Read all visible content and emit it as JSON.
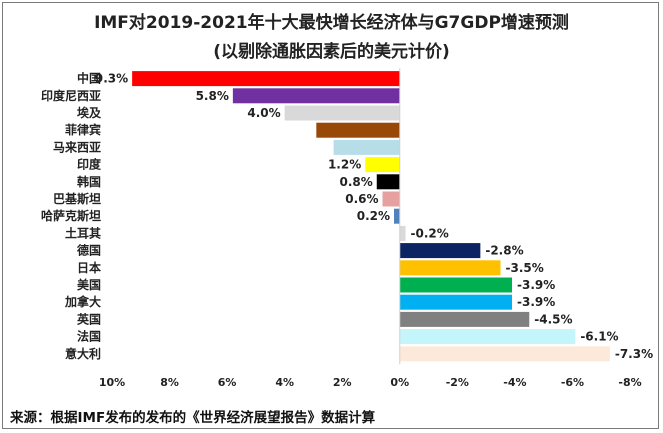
{
  "chart_data": {
    "type": "bar",
    "orientation": "horizontal",
    "title": "IMF对2019-2021年十大最快增长经济体与G7GDP增速预测",
    "subtitle": "(以剔除通胀因素后的美元计价)",
    "xlabel": "",
    "ylabel": "",
    "xlim": [
      -8,
      10
    ],
    "x_reversed": true,
    "x_ticks": [
      "10%",
      "8%",
      "6%",
      "4%",
      "2%",
      "0%",
      "-2%",
      "-4%",
      "-6%",
      "-8%"
    ],
    "x_tick_values": [
      10,
      8,
      6,
      4,
      2,
      0,
      -2,
      -4,
      -6,
      -8
    ],
    "grid": false,
    "legend": false,
    "categories": [
      "中国",
      "印度尼西亚",
      "埃及",
      "菲律宾",
      "马来西亚",
      "印度",
      "韩国",
      "巴基斯坦",
      "哈萨克斯坦",
      "土耳其",
      "德国",
      "日本",
      "美国",
      "加拿大",
      "英国",
      "法国",
      "意大利"
    ],
    "values": [
      9.3,
      5.8,
      4.0,
      2.9,
      2.3,
      1.2,
      0.8,
      0.6,
      0.2,
      -0.2,
      -2.8,
      -3.5,
      -3.9,
      -3.9,
      -4.5,
      -6.1,
      -7.3
    ],
    "data_labels": [
      "9.3%",
      "5.8%",
      "4.0%",
      "",
      "",
      "1.2%",
      "0.8%",
      "0.6%",
      "0.2%",
      "-0.2%",
      "-2.8%",
      "-3.5%",
      "-3.9%",
      "-3.9%",
      "-4.5%",
      "-6.1%",
      "-7.3%"
    ],
    "colors": [
      "#ff0000",
      "#7030a0",
      "#d9d9d9",
      "#984807",
      "#b7dee8",
      "#ffff00",
      "#000000",
      "#e6a0a0",
      "#4f81bd",
      "#d9d9d9",
      "#0c2461",
      "#ffc000",
      "#00b050",
      "#00b0f0",
      "#808080",
      "#c4f5fb",
      "#fde9d9"
    ]
  },
  "source_note": "来源：根据IMF发布的发布的《世界经济展望报告》数据计算"
}
